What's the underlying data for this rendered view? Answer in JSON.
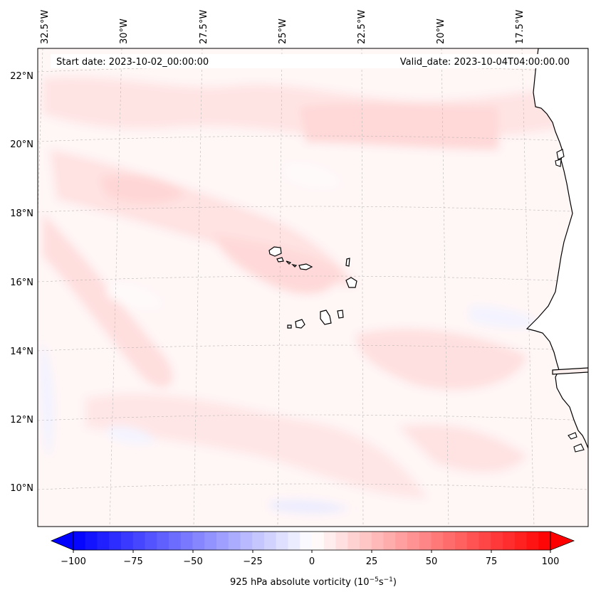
{
  "map": {
    "header": {
      "start_date": "Start date: 2023-10-02_00:00:00",
      "valid_date": "Valid_date: 2023-10-04T04:00:00.00"
    },
    "lon_labels": [
      "32.5°W",
      "30°W",
      "27.5°W",
      "25°W",
      "22.5°W",
      "20°W",
      "17.5°W"
    ],
    "lat_labels": [
      "22°N",
      "20°N",
      "18°N",
      "16°N",
      "14°N",
      "12°N",
      "10°N"
    ],
    "colorbar": {
      "ticks": [
        "−100",
        "−75",
        "−50",
        "−25",
        "0",
        "25",
        "50",
        "75",
        "100"
      ],
      "label": "925 hPa absolute vorticity (10",
      "label_exp1": "−5",
      "label_mid": "s",
      "label_exp2": "−1",
      "label_end": ")",
      "min_color": "#0000ff",
      "mid_color": "#ffffff",
      "max_color": "#ff0000"
    }
  }
}
